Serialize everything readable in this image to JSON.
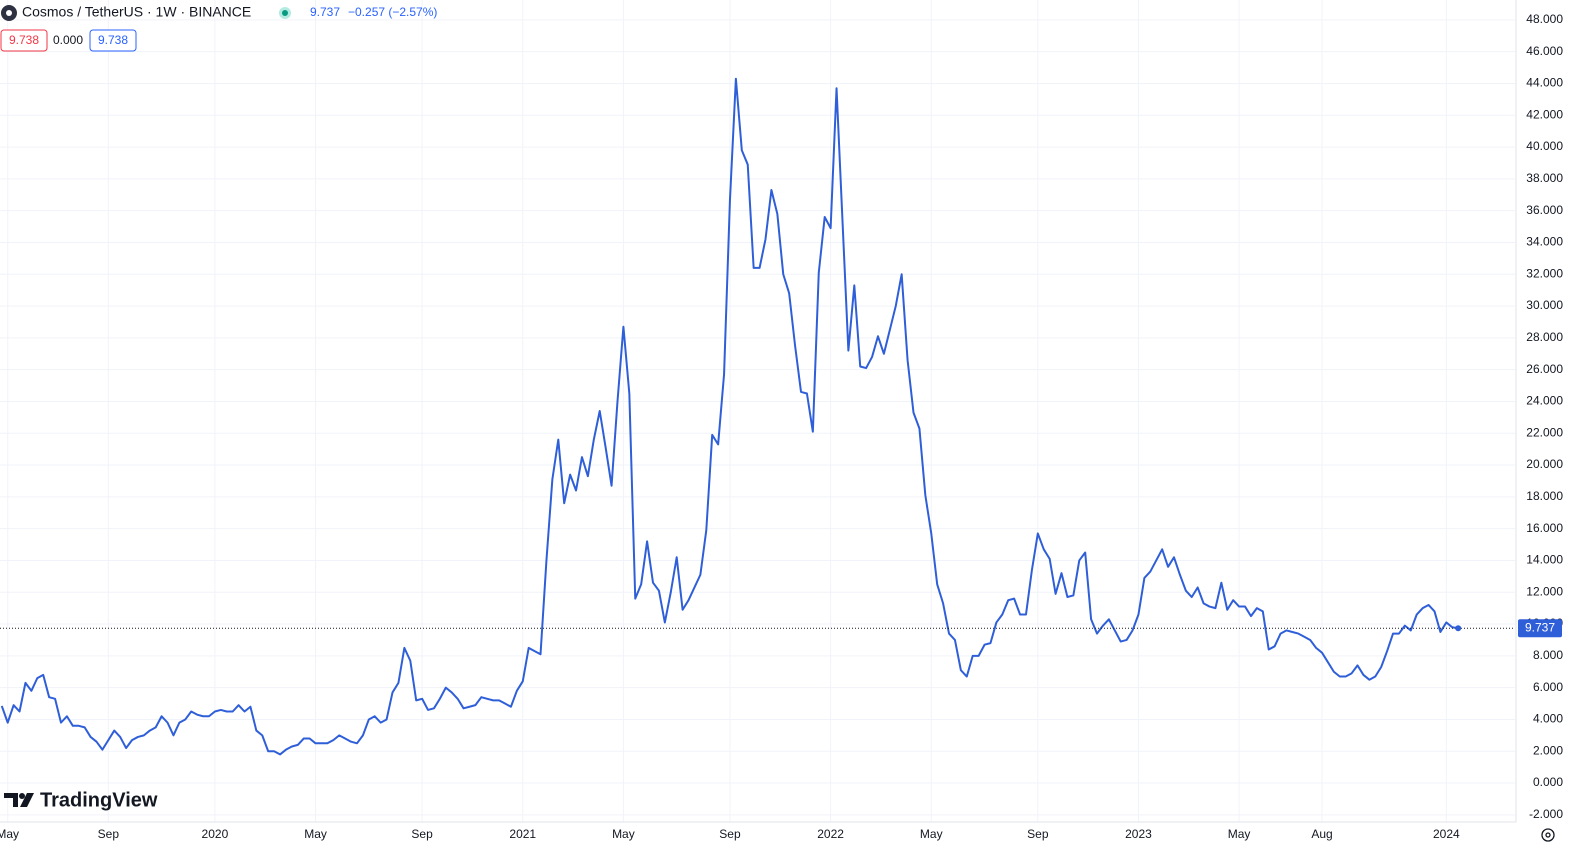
{
  "header": {
    "symbol": "Cosmos / TetherUS · 1W · BINANCE",
    "price": "9.737",
    "change": "−0.257 (−2.57%)",
    "bid": "9.738",
    "spread": "0.000",
    "ask": "9.738"
  },
  "watermark": "TradingView",
  "chart_data": {
    "type": "line",
    "xlim": [
      -0.3,
      255.6
    ],
    "ylim": [
      -2.45,
      49.25
    ],
    "xticks": [
      {
        "value": 1,
        "label": "May"
      },
      {
        "value": 18,
        "label": "Sep"
      },
      {
        "value": 36,
        "label": "2020"
      },
      {
        "value": 53,
        "label": "May"
      },
      {
        "value": 71,
        "label": "Sep"
      },
      {
        "value": 88,
        "label": "2021"
      },
      {
        "value": 105,
        "label": "May"
      },
      {
        "value": 123,
        "label": "Sep"
      },
      {
        "value": 140,
        "label": "2022"
      },
      {
        "value": 157,
        "label": "May"
      },
      {
        "value": 175,
        "label": "Sep"
      },
      {
        "value": 192,
        "label": "2023"
      },
      {
        "value": 209,
        "label": "May"
      },
      {
        "value": 223,
        "label": "Aug"
      },
      {
        "value": 244,
        "label": "2024"
      }
    ],
    "yticks": [
      {
        "value": -2,
        "label": "-2.000"
      },
      {
        "value": 0,
        "label": "0.000"
      },
      {
        "value": 2,
        "label": "2.000"
      },
      {
        "value": 4,
        "label": "4.000"
      },
      {
        "value": 6,
        "label": "6.000"
      },
      {
        "value": 8,
        "label": "8.000"
      },
      {
        "value": 10,
        "label": "10.000"
      },
      {
        "value": 12,
        "label": "12.000"
      },
      {
        "value": 14,
        "label": "14.000"
      },
      {
        "value": 16,
        "label": "16.000"
      },
      {
        "value": 18,
        "label": "18.000"
      },
      {
        "value": 20,
        "label": "20.000"
      },
      {
        "value": 22,
        "label": "22.000"
      },
      {
        "value": 24,
        "label": "24.000"
      },
      {
        "value": 26,
        "label": "26.000"
      },
      {
        "value": 28,
        "label": "28.000"
      },
      {
        "value": 30,
        "label": "30.000"
      },
      {
        "value": 32,
        "label": "32.000"
      },
      {
        "value": 34,
        "label": "34.000"
      },
      {
        "value": 36,
        "label": "36.000"
      },
      {
        "value": 38,
        "label": "38.000"
      },
      {
        "value": 40,
        "label": "40.000"
      },
      {
        "value": 42,
        "label": "42.000"
      },
      {
        "value": 44,
        "label": "44.000"
      },
      {
        "value": 46,
        "label": "46.000"
      },
      {
        "value": 48,
        "label": "48.000"
      }
    ],
    "grid": true,
    "color": "#2f5fd8",
    "last_value": 9.737,
    "values": [
      4.85,
      3.8,
      4.9,
      4.5,
      6.3,
      5.8,
      6.6,
      6.8,
      5.4,
      5.3,
      3.8,
      4.2,
      3.6,
      3.6,
      3.5,
      2.9,
      2.6,
      2.1,
      2.7,
      3.3,
      2.9,
      2.2,
      2.7,
      2.9,
      3.0,
      3.3,
      3.5,
      4.2,
      3.8,
      3.0,
      3.8,
      4.0,
      4.5,
      4.3,
      4.2,
      4.2,
      4.5,
      4.6,
      4.5,
      4.5,
      4.9,
      4.5,
      4.8,
      3.3,
      3.0,
      2.0,
      2.0,
      1.8,
      2.1,
      2.3,
      2.4,
      2.8,
      2.8,
      2.5,
      2.5,
      2.5,
      2.7,
      3.0,
      2.8,
      2.6,
      2.5,
      3.0,
      4.0,
      4.2,
      3.8,
      4.0,
      5.7,
      6.3,
      8.5,
      7.7,
      5.2,
      5.3,
      4.6,
      4.7,
      5.3,
      6.0,
      5.7,
      5.3,
      4.7,
      4.8,
      4.9,
      5.4,
      5.3,
      5.2,
      5.2,
      5.0,
      4.8,
      5.8,
      6.4,
      8.5,
      8.3,
      8.1,
      14.0,
      19.1,
      21.6,
      17.6,
      19.4,
      18.4,
      20.5,
      19.3,
      21.6,
      23.4,
      21.1,
      18.7,
      24.0,
      28.7,
      24.5,
      11.6,
      12.5,
      15.2,
      12.6,
      12.1,
      10.1,
      12.0,
      14.2,
      10.9,
      11.5,
      12.3,
      13.1,
      15.9,
      21.9,
      21.3,
      25.7,
      36.7,
      44.3,
      39.8,
      38.9,
      32.4,
      32.4,
      34.2,
      37.3,
      35.8,
      32.0,
      30.8,
      27.5,
      24.6,
      24.5,
      22.1,
      32.1,
      35.6,
      34.9,
      43.7,
      35.4,
      27.2,
      31.3,
      26.2,
      26.1,
      26.8,
      28.1,
      27.0,
      28.5,
      30.0,
      32.0,
      26.6,
      23.3,
      22.3,
      18.1,
      15.7,
      12.5,
      11.3,
      9.4,
      9.0,
      7.1,
      6.7,
      8.0,
      8.0,
      8.7,
      8.8,
      10.1,
      10.6,
      11.5,
      11.6,
      10.6,
      10.6,
      13.4,
      15.7,
      14.7,
      14.1,
      11.9,
      13.2,
      11.7,
      11.8,
      14.0,
      14.5,
      10.3,
      9.4,
      9.9,
      10.3,
      9.6,
      8.9,
      9.0,
      9.6,
      10.6,
      12.9,
      13.3,
      14.0,
      14.7,
      13.6,
      14.2,
      13.1,
      12.1,
      11.7,
      12.3,
      11.3,
      11.1,
      11.0,
      12.6,
      10.9,
      11.5,
      11.1,
      11.1,
      10.5,
      11.0,
      10.8,
      8.4,
      8.6,
      9.4,
      9.6,
      9.5,
      9.4,
      9.2,
      9.0,
      8.5,
      8.2,
      7.6,
      7.0,
      6.7,
      6.7,
      6.9,
      7.4,
      6.8,
      6.5,
      6.7,
      7.3,
      8.3,
      9.4,
      9.4,
      9.9,
      9.6,
      10.6,
      11.0,
      11.2,
      10.8,
      9.5,
      10.1,
      9.8,
      9.737
    ]
  }
}
